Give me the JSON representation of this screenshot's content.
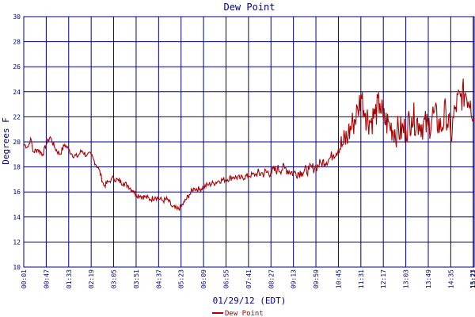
{
  "chart_data": {
    "type": "line",
    "title": "Dew Point",
    "xlabel": "01/29/12 (EDT)",
    "ylabel": "Degrees F",
    "ylim": [
      10,
      30
    ],
    "yticks": [
      "10",
      "12",
      "14",
      "16",
      "18",
      "20",
      "22",
      "24",
      "26",
      "28",
      "30"
    ],
    "xticks": [
      "00:01",
      "00:47",
      "01:33",
      "02:19",
      "03:05",
      "03:51",
      "04:37",
      "05:23",
      "06:09",
      "06:55",
      "07:41",
      "08:27",
      "09:13",
      "09:59",
      "10:45",
      "11:31",
      "12:17",
      "13:03",
      "13:49",
      "14:35",
      "15:21",
      "15:23"
    ],
    "grid": true,
    "legend_position": "bottom",
    "colors": {
      "series": "#aa0000",
      "grid": "#000080",
      "background": "#ffffff"
    },
    "series": [
      {
        "name": "Dew Point",
        "x": [
          "00:01",
          "00:10",
          "00:15",
          "00:20",
          "00:30",
          "00:40",
          "00:47",
          "00:55",
          "01:05",
          "01:15",
          "01:25",
          "01:33",
          "01:40",
          "01:50",
          "02:00",
          "02:10",
          "02:19",
          "02:25",
          "02:35",
          "02:45",
          "02:55",
          "03:00",
          "03:05",
          "03:15",
          "03:25",
          "03:35",
          "03:45",
          "03:51",
          "04:00",
          "04:10",
          "04:20",
          "04:30",
          "04:37",
          "04:45",
          "04:55",
          "05:05",
          "05:15",
          "05:23",
          "05:30",
          "05:40",
          "05:50",
          "06:00",
          "06:09",
          "06:20",
          "06:30",
          "06:40",
          "06:55",
          "07:10",
          "07:25",
          "07:41",
          "07:55",
          "08:10",
          "08:27",
          "08:40",
          "08:55",
          "09:13",
          "09:30",
          "09:45",
          "09:59",
          "10:10",
          "10:25",
          "10:35",
          "10:45",
          "10:55",
          "11:05",
          "11:15",
          "11:25",
          "11:31",
          "11:40",
          "11:50",
          "12:00",
          "12:10",
          "12:17",
          "12:30",
          "12:45",
          "13:03",
          "13:15",
          "13:30",
          "13:49",
          "14:00",
          "14:15",
          "14:25",
          "14:35",
          "14:45",
          "14:55",
          "15:05",
          "15:15",
          "15:23"
        ],
        "values": [
          19.8,
          19.6,
          20.3,
          19.2,
          19.4,
          19.0,
          19.8,
          20.4,
          19.5,
          19.0,
          19.8,
          19.4,
          19.0,
          18.8,
          19.3,
          18.9,
          19.0,
          18.5,
          17.8,
          16.5,
          16.8,
          17.0,
          17.1,
          16.9,
          16.7,
          16.5,
          16.1,
          15.8,
          15.7,
          15.6,
          15.4,
          15.6,
          15.5,
          15.3,
          15.4,
          14.8,
          14.6,
          14.8,
          15.2,
          15.8,
          16.3,
          16.2,
          16.4,
          16.6,
          16.7,
          16.9,
          17.0,
          17.2,
          17.1,
          17.3,
          17.4,
          17.5,
          17.6,
          17.8,
          17.9,
          17.5,
          17.6,
          17.8,
          18.0,
          18.3,
          18.6,
          19.0,
          19.4,
          19.8,
          20.6,
          21.5,
          22.5,
          23.8,
          22.3,
          21.6,
          22.2,
          23.1,
          21.8,
          21.3,
          20.8,
          21.0,
          22.0,
          21.5,
          21.2,
          22.3,
          21.0,
          22.5,
          20.4,
          22.8,
          23.6,
          23.9,
          23.3,
          22.0
        ]
      }
    ]
  }
}
